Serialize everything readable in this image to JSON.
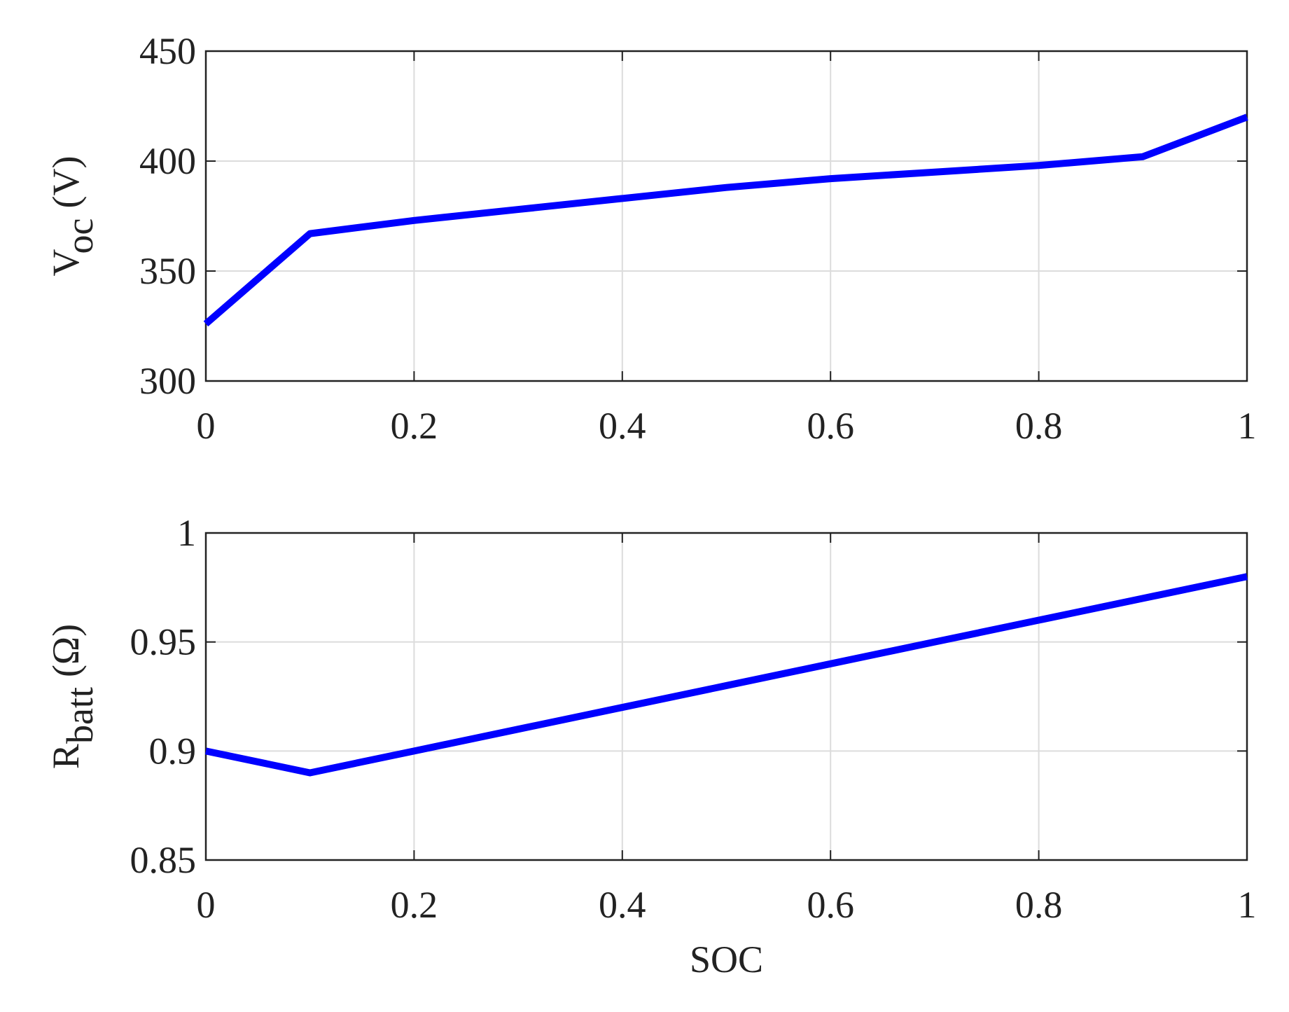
{
  "chart_data": [
    {
      "type": "line",
      "ylabel": {
        "main": "V",
        "sub": "oc",
        "unit": "(V)"
      },
      "x": [
        0,
        0.1,
        0.2,
        0.3,
        0.4,
        0.5,
        0.6,
        0.7,
        0.8,
        0.9,
        1
      ],
      "series": [
        {
          "color": "#0000ff",
          "values": [
            326,
            367,
            373,
            378,
            383,
            388,
            392,
            395,
            398,
            402,
            420
          ]
        }
      ],
      "xlim": [
        0,
        1
      ],
      "xticks": [
        0,
        0.2,
        0.4,
        0.6,
        0.8,
        1
      ],
      "ylim": [
        300,
        450
      ],
      "yticks": [
        300,
        350,
        400,
        450
      ],
      "grid": true
    },
    {
      "type": "line",
      "xlabel": "SOC",
      "ylabel": {
        "main": "R",
        "sub": "batt",
        "unit": "(Ω)"
      },
      "x": [
        0,
        0.1,
        0.2,
        0.3,
        0.4,
        0.5,
        0.6,
        0.7,
        0.8,
        0.9,
        1
      ],
      "series": [
        {
          "color": "#0000ff",
          "values": [
            0.9,
            0.89,
            0.9,
            0.91,
            0.92,
            0.93,
            0.94,
            0.95,
            0.96,
            0.97,
            0.98
          ]
        }
      ],
      "xlim": [
        0,
        1
      ],
      "xticks": [
        0,
        0.2,
        0.4,
        0.6,
        0.8,
        1
      ],
      "ylim": [
        0.85,
        1
      ],
      "yticks": [
        0.85,
        0.9,
        0.95,
        1
      ],
      "grid": true
    }
  ]
}
